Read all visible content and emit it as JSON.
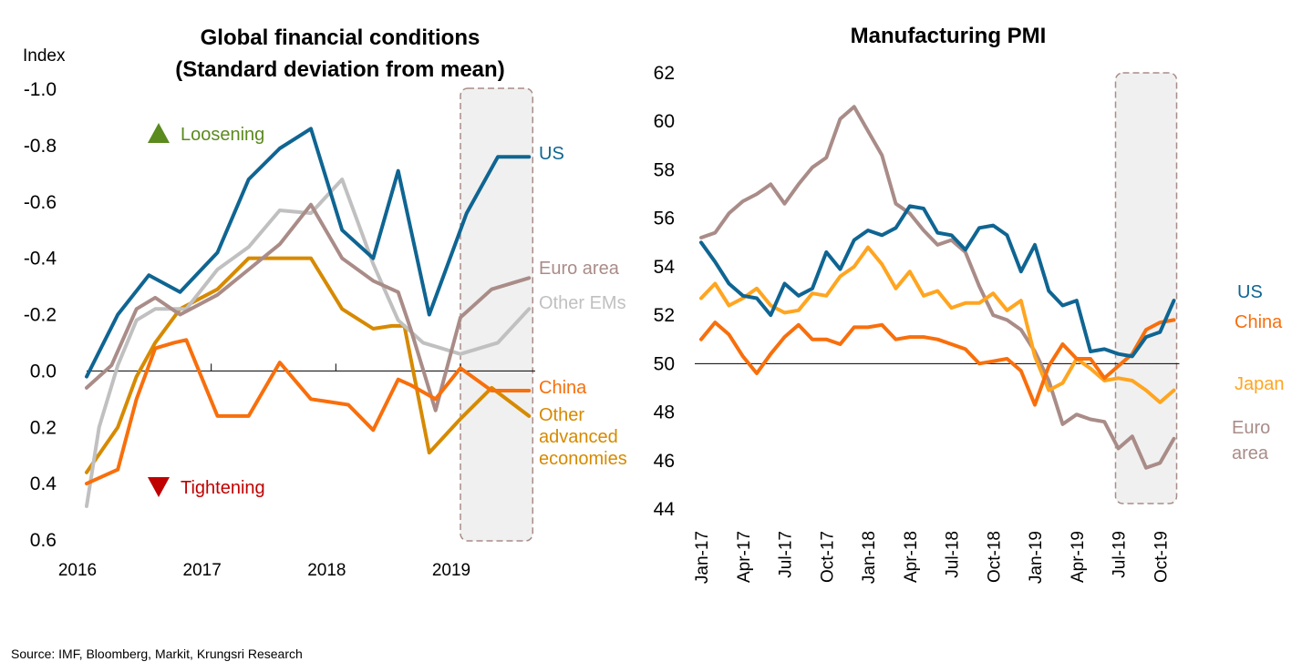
{
  "source": "Source: IMF, Bloomberg, Markit, Krungsri Research",
  "chart_data": [
    {
      "type": "line",
      "title": "Global financial conditions",
      "subtitle": "(Standard deviation from mean)",
      "ylabel": "Index",
      "y_inverted": true,
      "ylim": [
        -1.0,
        0.6
      ],
      "y_ticks": [
        "-1.0",
        "-0.8",
        "-0.6",
        "-0.4",
        "-0.2",
        "0.0",
        "0.2",
        "0.4",
        "0.6"
      ],
      "x_ticks": [
        "2016",
        "2017",
        "2018",
        "2019"
      ],
      "xlim": [
        2016.0,
        2019.6
      ],
      "shaded_period": [
        2019.0,
        2019.58
      ],
      "annotations": {
        "up": "Loosening",
        "down": "Tightening"
      },
      "colors": {
        "up": "#5b8a1e",
        "down": "#c00000"
      },
      "series": [
        {
          "name": "Other advanced economies",
          "label_lines": [
            "Other",
            "advanced",
            "economies"
          ],
          "color": "#d68a00",
          "x": [
            2016.0,
            2016.25,
            2016.4,
            2016.55,
            2016.75,
            2017.05,
            2017.3,
            2017.55,
            2017.8,
            2018.05,
            2018.3,
            2018.45,
            2018.55,
            2018.75,
            2019.0,
            2019.25,
            2019.55
          ],
          "y": [
            0.36,
            0.2,
            0.02,
            -0.1,
            -0.22,
            -0.29,
            -0.4,
            -0.4,
            -0.4,
            -0.22,
            -0.15,
            -0.16,
            -0.16,
            0.29,
            0.17,
            0.06,
            0.16
          ]
        },
        {
          "name": "Other EMs",
          "color": "#c0c0c0",
          "x": [
            2016.0,
            2016.1,
            2016.25,
            2016.4,
            2016.55,
            2016.8,
            2017.05,
            2017.3,
            2017.55,
            2017.8,
            2018.05,
            2018.3,
            2018.5,
            2018.7,
            2018.85,
            2019.0,
            2019.15,
            2019.3,
            2019.55
          ],
          "y": [
            0.48,
            0.2,
            -0.02,
            -0.18,
            -0.22,
            -0.22,
            -0.36,
            -0.44,
            -0.57,
            -0.56,
            -0.68,
            -0.38,
            -0.18,
            -0.1,
            -0.08,
            -0.06,
            -0.08,
            -0.1,
            -0.22
          ]
        },
        {
          "name": "Euro area",
          "color": "#a98c88",
          "x": [
            2016.0,
            2016.2,
            2016.4,
            2016.55,
            2016.75,
            2017.05,
            2017.3,
            2017.55,
            2017.8,
            2018.05,
            2018.3,
            2018.5,
            2018.6,
            2018.8,
            2019.0,
            2019.25,
            2019.55
          ],
          "y": [
            0.06,
            -0.02,
            -0.22,
            -0.26,
            -0.2,
            -0.27,
            -0.36,
            -0.45,
            -0.59,
            -0.4,
            -0.32,
            -0.28,
            -0.15,
            0.14,
            -0.19,
            -0.29,
            -0.33
          ]
        },
        {
          "name": "China",
          "color": "#f86f0c",
          "x": [
            2016.0,
            2016.25,
            2016.4,
            2016.55,
            2016.7,
            2016.8,
            2017.05,
            2017.3,
            2017.55,
            2017.8,
            2017.95,
            2018.1,
            2018.3,
            2018.5,
            2018.6,
            2018.8,
            2019.0,
            2019.25,
            2019.55
          ],
          "y": [
            0.4,
            0.35,
            0.1,
            -0.08,
            -0.1,
            -0.11,
            0.16,
            0.16,
            -0.03,
            0.1,
            0.11,
            0.12,
            0.21,
            0.03,
            0.05,
            0.1,
            -0.01,
            0.07,
            0.07
          ]
        },
        {
          "name": "US",
          "color": "#0f6592",
          "x": [
            2016.0,
            2016.25,
            2016.5,
            2016.75,
            2017.05,
            2017.3,
            2017.55,
            2017.8,
            2018.05,
            2018.3,
            2018.5,
            2018.75,
            2019.05,
            2019.3,
            2019.55
          ],
          "y": [
            0.02,
            -0.2,
            -0.34,
            -0.28,
            -0.42,
            -0.68,
            -0.79,
            -0.86,
            -0.5,
            -0.4,
            -0.71,
            -0.2,
            -0.56,
            -0.76,
            -0.76
          ]
        }
      ]
    },
    {
      "type": "line",
      "title": "Manufacturing PMI",
      "ylim": [
        44,
        62
      ],
      "y_ticks": [
        "44",
        "46",
        "48",
        "50",
        "52",
        "54",
        "56",
        "58",
        "60",
        "62"
      ],
      "months": [
        "Jan-17",
        "Feb-17",
        "Mar-17",
        "Apr-17",
        "May-17",
        "Jun-17",
        "Jul-17",
        "Aug-17",
        "Sep-17",
        "Oct-17",
        "Nov-17",
        "Dec-17",
        "Jan-18",
        "Feb-18",
        "Mar-18",
        "Apr-18",
        "May-18",
        "Jun-18",
        "Jul-18",
        "Aug-18",
        "Sep-18",
        "Oct-18",
        "Nov-18",
        "Dec-18",
        "Jan-19",
        "Feb-19",
        "Mar-19",
        "Apr-19",
        "May-19",
        "Jun-19",
        "Jul-19",
        "Aug-19",
        "Sep-19",
        "Oct-19",
        "Nov-19"
      ],
      "x_ticks": [
        "Jan-17",
        "Apr-17",
        "Jul-17",
        "Oct-17",
        "Jan-18",
        "Apr-18",
        "Jul-18",
        "Oct-18",
        "Jan-19",
        "Apr-19",
        "Jul-19",
        "Oct-19"
      ],
      "shaded_period": [
        "Jul-19",
        "Nov-19"
      ],
      "series": [
        {
          "name": "Euro area",
          "label_lines": [
            "Euro",
            "area"
          ],
          "color": "#a98c88",
          "values": [
            55.2,
            55.4,
            56.2,
            56.7,
            57.0,
            57.4,
            56.6,
            57.4,
            58.1,
            58.5,
            60.1,
            60.6,
            59.6,
            58.6,
            56.6,
            56.2,
            55.5,
            54.9,
            55.1,
            54.6,
            53.2,
            52.0,
            51.8,
            51.4,
            50.5,
            49.3,
            47.5,
            47.9,
            47.7,
            47.6,
            46.5,
            47.0,
            45.7,
            45.9,
            46.9
          ]
        },
        {
          "name": "Japan",
          "color": "#ffa520",
          "values": [
            52.7,
            53.3,
            52.4,
            52.7,
            53.1,
            52.4,
            52.1,
            52.2,
            52.9,
            52.8,
            53.6,
            54.0,
            54.8,
            54.1,
            53.1,
            53.8,
            52.8,
            53.0,
            52.3,
            52.5,
            52.5,
            52.9,
            52.2,
            52.6,
            50.3,
            48.9,
            49.2,
            50.2,
            49.8,
            49.3,
            49.4,
            49.3,
            48.9,
            48.4,
            48.9
          ]
        },
        {
          "name": "China",
          "color": "#f86f0c",
          "values": [
            51.0,
            51.7,
            51.2,
            50.3,
            49.6,
            50.4,
            51.1,
            51.6,
            51.0,
            51.0,
            50.8,
            51.5,
            51.5,
            51.6,
            51.0,
            51.1,
            51.1,
            51.0,
            50.8,
            50.6,
            50.0,
            50.1,
            50.2,
            49.7,
            48.3,
            49.9,
            50.8,
            50.2,
            50.2,
            49.4,
            49.9,
            50.4,
            51.4,
            51.7,
            51.8
          ]
        },
        {
          "name": "US",
          "color": "#0f6592",
          "values": [
            55.0,
            54.2,
            53.3,
            52.8,
            52.7,
            52.0,
            53.3,
            52.8,
            53.1,
            54.6,
            53.9,
            55.1,
            55.5,
            55.3,
            55.6,
            56.5,
            56.4,
            55.4,
            55.3,
            54.7,
            55.6,
            55.7,
            55.3,
            53.8,
            54.9,
            53.0,
            52.4,
            52.6,
            50.5,
            50.6,
            50.4,
            50.3,
            51.1,
            51.3,
            52.6
          ]
        }
      ]
    }
  ]
}
